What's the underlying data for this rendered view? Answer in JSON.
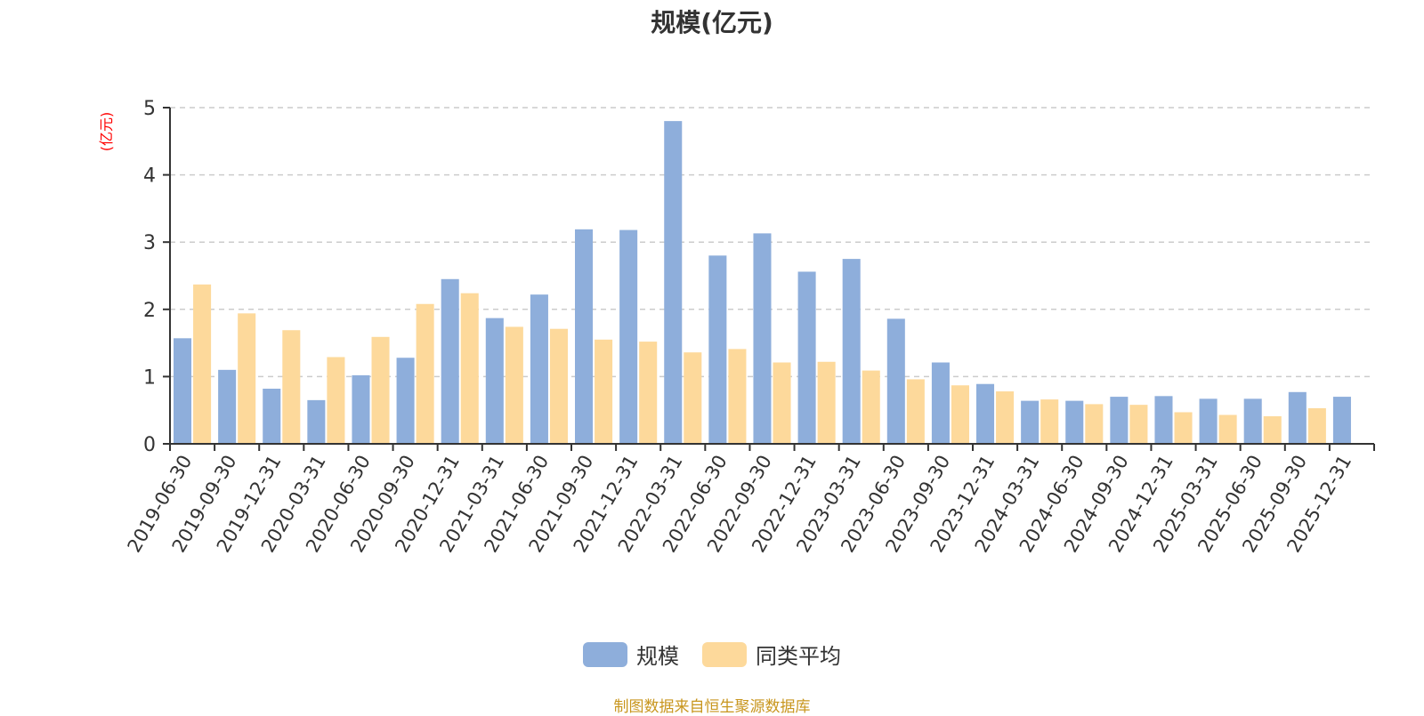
{
  "chart_data": {
    "type": "bar",
    "title": "规模(亿元)",
    "ylabel": "(亿元)",
    "ylim": [
      0,
      5
    ],
    "yticks": [
      0,
      1,
      2,
      3,
      4,
      5
    ],
    "grid": "horizontal-dashed",
    "legend_position": "bottom",
    "categories": [
      "2019-06-30",
      "2019-09-30",
      "2019-12-31",
      "2020-03-31",
      "2020-06-30",
      "2020-09-30",
      "2020-12-31",
      "2021-03-31",
      "2021-06-30",
      "2021-09-30",
      "2021-12-31",
      "2022-03-31",
      "2022-06-30",
      "2022-09-30",
      "2022-12-31",
      "2023-03-31",
      "2023-06-30",
      "2023-09-30",
      "2023-12-31",
      "2024-03-31",
      "2024-06-30",
      "2024-09-30",
      "2024-12-31",
      "2025-03-31",
      "2025-06-30",
      "2025-09-30",
      "2025-12-31"
    ],
    "series": [
      {
        "name": "规模",
        "color": "#8eaedb",
        "values": [
          1.57,
          1.1,
          0.82,
          0.65,
          1.02,
          1.28,
          2.45,
          1.87,
          2.22,
          3.19,
          3.18,
          4.8,
          2.8,
          3.13,
          2.56,
          2.75,
          1.86,
          1.21,
          0.89,
          0.64,
          0.64,
          0.7,
          0.71,
          0.67,
          0.67,
          0.77,
          0.7
        ]
      },
      {
        "name": "同类平均",
        "color": "#fdd99b",
        "values": [
          2.37,
          1.94,
          1.69,
          1.29,
          1.59,
          2.08,
          2.24,
          1.74,
          1.71,
          1.55,
          1.52,
          1.36,
          1.41,
          1.21,
          1.22,
          1.09,
          0.96,
          0.87,
          0.78,
          0.66,
          0.59,
          0.58,
          0.47,
          0.43,
          0.41,
          0.53,
          null
        ]
      }
    ]
  },
  "footer": {
    "source": "制图数据来自恒生聚源数据库"
  }
}
